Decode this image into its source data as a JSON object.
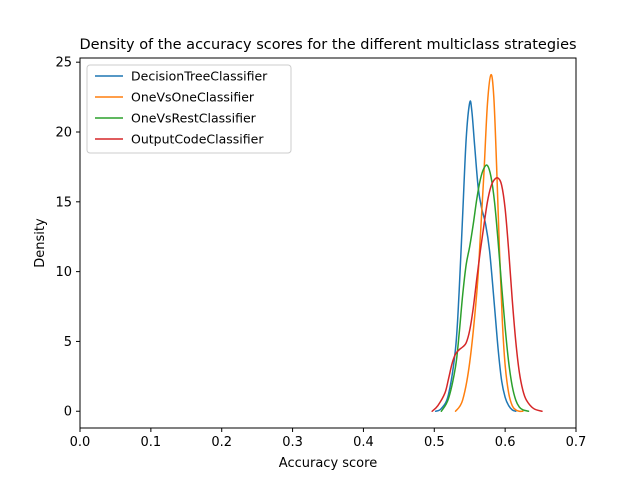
{
  "chart_data": {
    "type": "line",
    "title": "Density of the accuracy scores for the different multiclass strategies",
    "xlabel": "Accuracy score",
    "ylabel": "Density",
    "xlim": [
      0.0,
      0.7
    ],
    "ylim": [
      -1.2,
      25.3
    ],
    "xticks": [
      0.0,
      0.1,
      0.2,
      0.3,
      0.4,
      0.5,
      0.6,
      0.7
    ],
    "xtick_labels": [
      "0.0",
      "0.1",
      "0.2",
      "0.3",
      "0.4",
      "0.5",
      "0.6",
      "0.7"
    ],
    "yticks": [
      0,
      5,
      10,
      15,
      20,
      25
    ],
    "ytick_labels": [
      "0",
      "5",
      "10",
      "15",
      "20",
      "25"
    ],
    "grid": false,
    "legend_position": "upper-left",
    "series": [
      {
        "name": "DecisionTreeClassifier",
        "color": "#1f77b4",
        "x": [
          0.502,
          0.51,
          0.52,
          0.53,
          0.535,
          0.54,
          0.545,
          0.55,
          0.553,
          0.557,
          0.562,
          0.567,
          0.572,
          0.578,
          0.585,
          0.59,
          0.595,
          0.6,
          0.605,
          0.61,
          0.615
        ],
        "y": [
          0.0,
          0.2,
          1.2,
          4.5,
          8.5,
          14.0,
          19.5,
          22.1,
          21.5,
          19.0,
          16.0,
          14.5,
          13.5,
          11.5,
          7.5,
          4.5,
          2.2,
          1.0,
          0.4,
          0.1,
          0.0
        ]
      },
      {
        "name": "OneVsOneClassifier",
        "color": "#ff7f0e",
        "x": [
          0.53,
          0.54,
          0.55,
          0.56,
          0.565,
          0.57,
          0.575,
          0.58,
          0.584,
          0.588,
          0.592,
          0.596,
          0.6,
          0.605,
          0.61,
          0.615,
          0.62,
          0.625
        ],
        "y": [
          0.0,
          0.8,
          3.5,
          8.5,
          12.5,
          17.0,
          22.0,
          24.1,
          22.5,
          17.5,
          11.5,
          6.5,
          3.3,
          1.3,
          0.4,
          0.1,
          0.0,
          0.0
        ]
      },
      {
        "name": "OneVsRestClassifier",
        "color": "#2ca02c",
        "x": [
          0.51,
          0.52,
          0.53,
          0.535,
          0.54,
          0.545,
          0.55,
          0.555,
          0.56,
          0.565,
          0.57,
          0.575,
          0.58,
          0.585,
          0.59,
          0.595,
          0.6,
          0.605,
          0.61,
          0.615,
          0.62,
          0.625,
          0.633
        ],
        "y": [
          0.0,
          0.9,
          3.2,
          5.5,
          8.3,
          10.5,
          11.8,
          13.4,
          15.2,
          16.6,
          17.4,
          17.6,
          16.8,
          15.0,
          12.2,
          9.0,
          6.0,
          3.5,
          1.8,
          0.8,
          0.3,
          0.1,
          0.0
        ]
      },
      {
        "name": "OutputCodeClassifier",
        "color": "#d62728",
        "x": [
          0.497,
          0.505,
          0.515,
          0.52,
          0.525,
          0.53,
          0.535,
          0.54,
          0.545,
          0.55,
          0.555,
          0.56,
          0.565,
          0.57,
          0.575,
          0.58,
          0.585,
          0.59,
          0.595,
          0.6,
          0.605,
          0.61,
          0.615,
          0.62,
          0.625,
          0.63,
          0.64,
          0.652
        ],
        "y": [
          0.0,
          0.4,
          1.3,
          2.3,
          3.4,
          4.1,
          4.4,
          4.6,
          4.9,
          5.8,
          7.4,
          9.5,
          11.5,
          13.3,
          15.0,
          16.1,
          16.6,
          16.7,
          16.2,
          14.5,
          11.5,
          8.0,
          5.0,
          2.8,
          1.5,
          0.8,
          0.2,
          0.0
        ]
      }
    ]
  }
}
